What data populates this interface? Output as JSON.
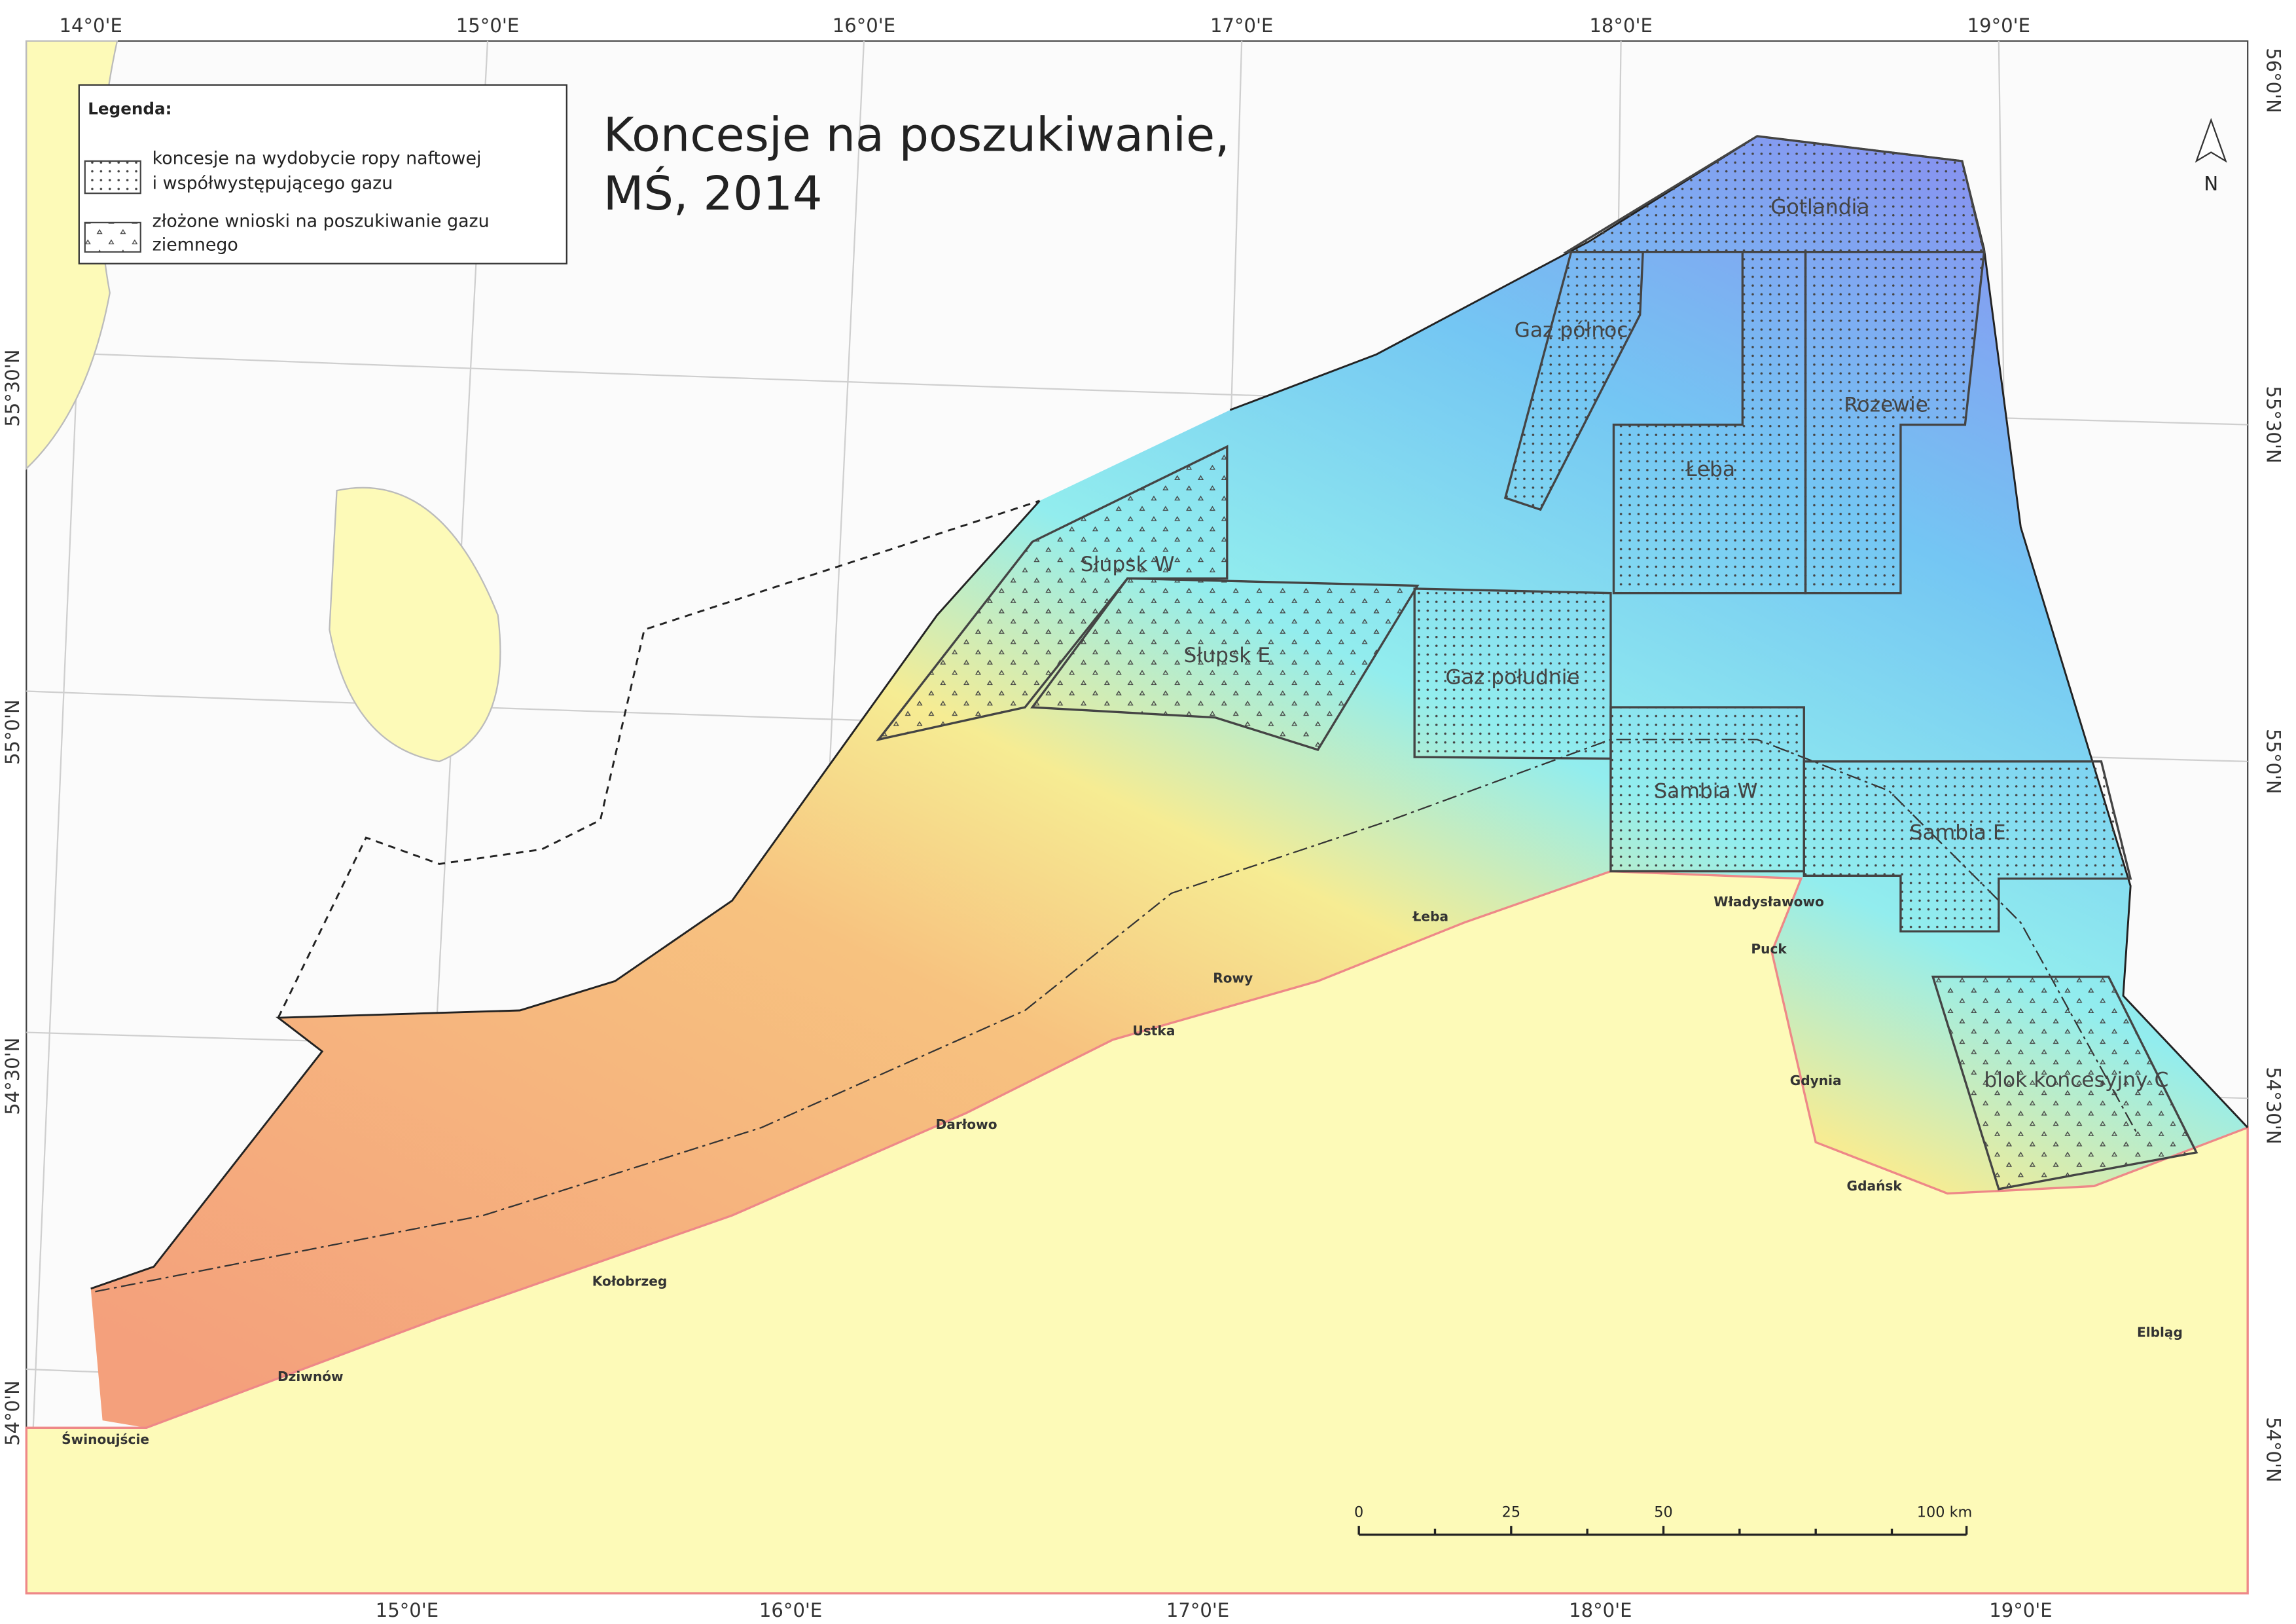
{
  "title": {
    "lines": [
      "Koncesje na poszukiwanie,",
      "MŚ, 2014"
    ]
  },
  "legend": {
    "title": "Legenda:",
    "items": [
      {
        "lines": [
          "koncesje na wydobycie ropy naftowej",
          "i współwystępującego gazu"
        ]
      },
      {
        "lines": [
          "złożone wnioski na poszukiwanie gazu",
          "ziemnego"
        ]
      }
    ]
  },
  "north": "N",
  "blocks": [
    "Gotlandia",
    "Gaz północ",
    "Łeba",
    "Rozewie",
    "Słupsk W",
    "Słupsk E",
    "Gaz południe",
    "Sambia W",
    "Sambia E",
    "blok koncesyjny C"
  ],
  "cities": [
    "Władysławowo",
    "Puck",
    "Łeba",
    "Rowy",
    "Ustka",
    "Darłowo",
    "Gdynia",
    "Gdańsk",
    "Kołobrzeg",
    "Dziwnów",
    "Świnoujście",
    "Elbląg"
  ],
  "graticule": {
    "top": [
      "14°0'E",
      "15°0'E",
      "16°0'E",
      "17°0'E",
      "18°0'E",
      "19°0'E"
    ],
    "bottom": [
      "15°0'E",
      "16°0'E",
      "17°0'E",
      "18°0'E",
      "19°0'E"
    ],
    "left": [
      "55°30'N",
      "55°0'N",
      "54°30'N",
      "54°0'N"
    ],
    "right": [
      "56°0'N",
      "55°30'N",
      "55°0'N",
      "54°30'N",
      "54°0'N"
    ]
  },
  "scale_bar": {
    "labels": [
      "0",
      "25",
      "50",
      "100 km"
    ]
  }
}
